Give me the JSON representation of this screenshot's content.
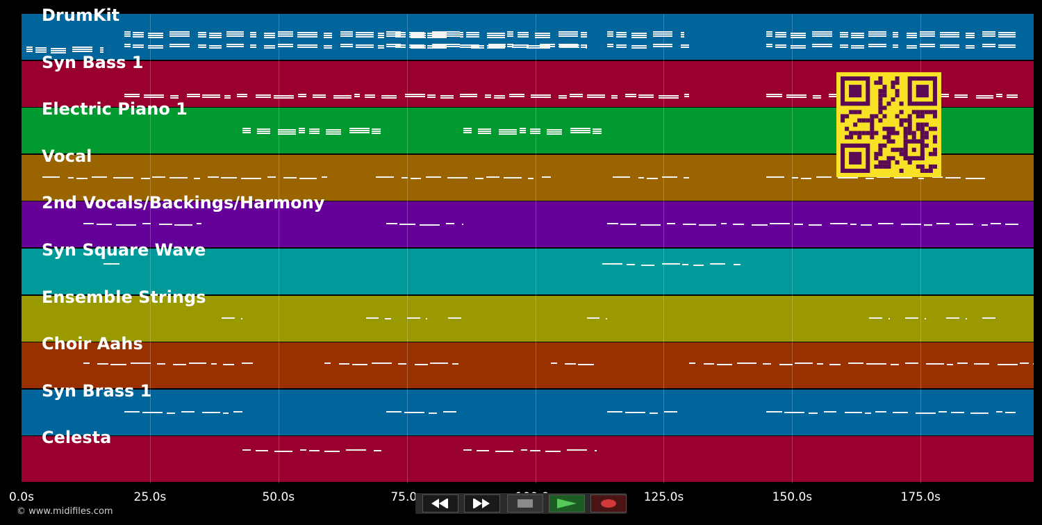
{
  "tracks": [
    {
      "name": "DrumKit",
      "color": "#00659a"
    },
    {
      "name": "Syn Bass 1",
      "color": "#990030"
    },
    {
      "name": "Electric Piano 1",
      "color": "#009a30"
    },
    {
      "name": "Vocal",
      "color": "#9a6500"
    },
    {
      "name": "2nd Vocals/Backings/Harmony",
      "color": "#650099"
    },
    {
      "name": "Syn Square Wave",
      "color": "#009a9a"
    },
    {
      "name": "Ensemble Strings",
      "color": "#9a9a00"
    },
    {
      "name": "Choir Aahs",
      "color": "#993000"
    },
    {
      "name": "Syn Brass 1",
      "color": "#00659a"
    },
    {
      "name": "Celesta",
      "color": "#990030"
    }
  ],
  "timeline": {
    "ticks": [
      "0.0s",
      "25.0s",
      "50.0s",
      "75.0s",
      "100.0s",
      "125.0s",
      "150.0s",
      "175.0s"
    ]
  },
  "copyright": "© www.midifiles.com",
  "controls": [
    {
      "name": "rewind-button",
      "icon": "rewind-icon"
    },
    {
      "name": "fast-forward-button",
      "icon": "fast-forward-icon"
    },
    {
      "name": "stop-button",
      "icon": "stop-icon"
    },
    {
      "name": "play-button",
      "icon": "play-icon"
    },
    {
      "name": "record-button",
      "icon": "record-icon"
    }
  ],
  "qr_code": {
    "icon": "qr-code-icon",
    "foreground": "#5a0a55",
    "background": "#f7e226"
  }
}
